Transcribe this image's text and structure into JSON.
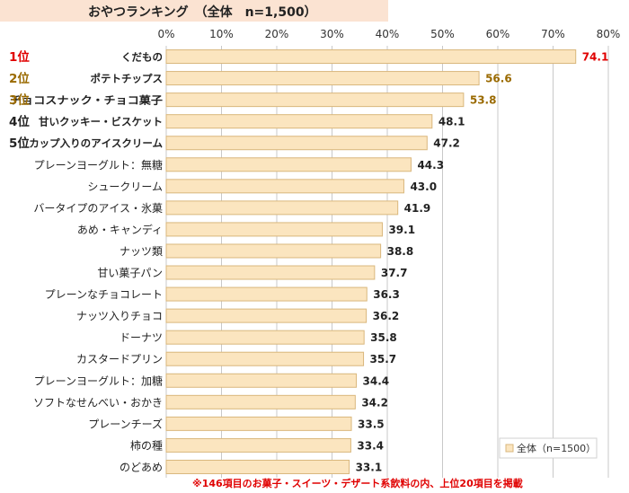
{
  "header": {
    "title": "おやつランキング　（全体　n=1,500）"
  },
  "footnote": "※146項目のお菓子・スイーツ・デザート系飲料の内、上位20項目を掲載",
  "colors": {
    "bar_fill": "#fbe5bf",
    "bar_stroke": "#d9b77c",
    "grid": "#c9c9c9",
    "rank1": "#e00000",
    "rank23": "#9a6a00",
    "rank45": "#222222",
    "value_default": "#222222"
  },
  "chart_data": {
    "type": "bar",
    "orientation": "horizontal",
    "title": "おやつランキング　（全体　n=1,500）",
    "xlim": [
      0,
      80
    ],
    "x_ticks": [
      "0%",
      "10%",
      "20%",
      "30%",
      "40%",
      "50%",
      "60%",
      "70%",
      "80%"
    ],
    "grid": true,
    "legend": {
      "position": "bottom-right",
      "label": "全体（n=1500）"
    },
    "series": [
      {
        "name": "全体（n=1500）"
      }
    ],
    "ranks": [
      "1位",
      "2位",
      "3位",
      "4位",
      "5位"
    ],
    "categories": [
      "くだもの",
      "ポテトチップス",
      "チョコスナック・チョコ菓子",
      "甘いクッキー・ビスケット",
      "カップ入りのアイスクリーム",
      "プレーンヨーグルト：無糖",
      "シュークリーム",
      "バータイプのアイス・氷菓",
      "あめ・キャンディ",
      "ナッツ類",
      "甘い菓子パン",
      "プレーンなチョコレート",
      "ナッツ入りチョコ",
      "ドーナツ",
      "カスタードプリン",
      "プレーンヨーグルト：加糖",
      "ソフトなせんべい・おかき",
      "プレーンチーズ",
      "柿の種",
      "のどあめ"
    ],
    "values": [
      74.1,
      56.6,
      53.8,
      48.1,
      47.2,
      44.3,
      43.0,
      41.9,
      39.1,
      38.8,
      37.7,
      36.3,
      36.2,
      35.8,
      35.7,
      34.4,
      34.2,
      33.5,
      33.4,
      33.1
    ],
    "value_labels": [
      "74.1",
      "56.6",
      "53.8",
      "48.1",
      "47.2",
      "44.3",
      "43.0",
      "41.9",
      "39.1",
      "38.8",
      "37.7",
      "36.3",
      "36.2",
      "35.8",
      "35.7",
      "34.4",
      "34.2",
      "33.5",
      "33.4",
      "33.1"
    ]
  }
}
